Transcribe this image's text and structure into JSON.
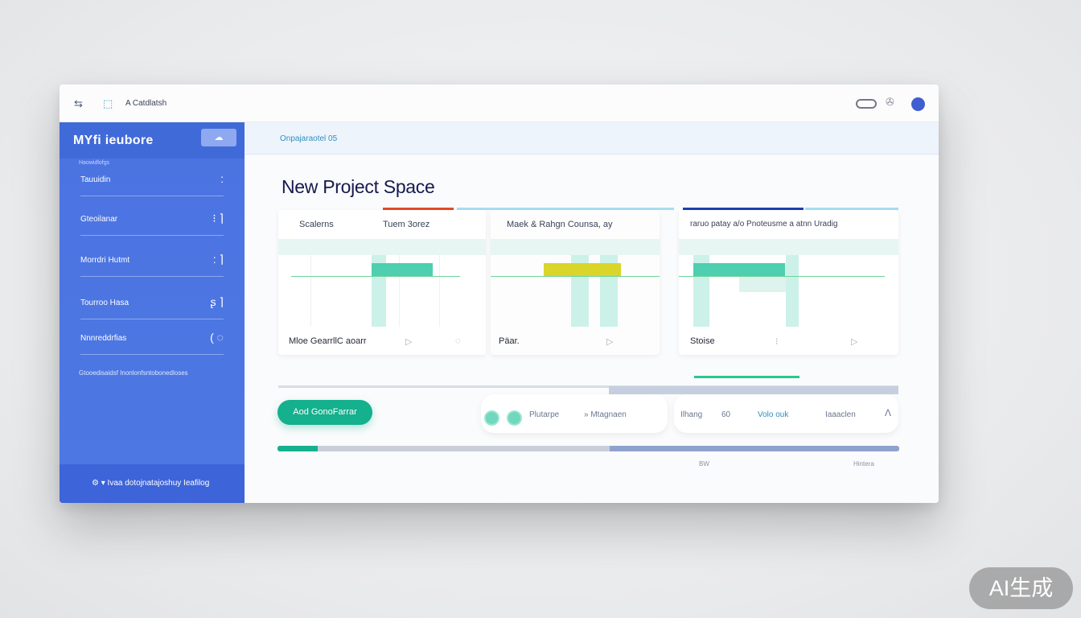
{
  "topbar": {
    "back_icon": "arrow-icon",
    "doc_icon": "document-icon",
    "breadcrumb": "A Catdlatsh",
    "right_icons": [
      "toggle-icon",
      "bird-icon",
      "avatar-dot"
    ],
    "avatar_color": "#3f5fcf"
  },
  "sidebar": {
    "title": "MYfi ieubore",
    "button_icon": "cloud-icon",
    "subtitle": "Haowidlofgs",
    "items": [
      {
        "label": "Tauuidin",
        "icon": ":"
      },
      {
        "label": "Gteoilanar",
        "icon": "⁝ ⌉"
      },
      {
        "label": "Morrdri Hutmt",
        "icon": ": ⌉"
      },
      {
        "label": "Tourroo Hasa",
        "icon": "ʂ ⌉"
      },
      {
        "label": "Nnnreddrfias",
        "icon": "( ◌"
      }
    ],
    "note": "Gtooedisaidsf Inonlonfsntobonedloses",
    "footer": "Ivaa dotojnatajoshuy Ieafilog",
    "footer_icon": "settings-icon",
    "accent": "#4b73e1"
  },
  "main": {
    "breadcrumb": "Onpajaraotel  05",
    "title": "New Project Space",
    "cards": [
      {
        "header": [
          "Scalerns",
          "Tuem 3orez"
        ],
        "footer": [
          "Mloe GearrllC aoarr",
          "▷",
          "◌"
        ],
        "highlight_color": "#4dcfb0"
      },
      {
        "header": [
          "Maek & Rahgn Counsa,  ay"
        ],
        "footer": [
          "Päar.",
          "▷"
        ],
        "highlight_color": "#d9d52a"
      },
      {
        "header": [
          "raruo patay  a/o Pnoteusme  a atnn Uradig"
        ],
        "footer": [
          "Stoise",
          "⁝",
          "▷"
        ],
        "highlight_color": "#4dcfb0"
      }
    ],
    "stripe_colors": [
      "#e24a2a",
      "#9fd9ee",
      "#1e40b0"
    ],
    "add_button": "Aod  GonoFarrar",
    "pill1": {
      "labels": [
        "Plutarpe",
        "» Mtagnaen"
      ]
    },
    "pill2": {
      "labels": [
        "Ilhang",
        "60",
        "Volo ouk",
        "Iaaaclen",
        "Λ"
      ]
    },
    "progress": {
      "percent": 6.5,
      "fill_color": "#15b08d",
      "secondary_color": "#8fa2cd"
    },
    "progress_labels": [
      "BW",
      "Hintera"
    ]
  },
  "watermark": "AI生成"
}
